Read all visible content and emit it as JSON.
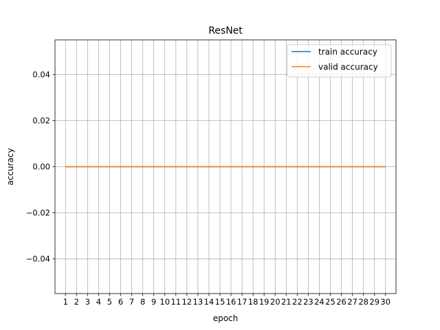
{
  "chart_data": {
    "type": "line",
    "title": "ResNet",
    "xlabel": "epoch",
    "ylabel": "accuracy",
    "x": [
      1,
      2,
      3,
      4,
      5,
      6,
      7,
      8,
      9,
      10,
      11,
      12,
      13,
      14,
      15,
      16,
      17,
      18,
      19,
      20,
      21,
      22,
      23,
      24,
      25,
      26,
      27,
      28,
      29,
      30
    ],
    "x_ticks": [
      "1",
      "2",
      "3",
      "4",
      "5",
      "6",
      "7",
      "8",
      "9",
      "10",
      "11",
      "12",
      "13",
      "14",
      "15",
      "16",
      "17",
      "18",
      "19",
      "20",
      "21",
      "22",
      "23",
      "24",
      "25",
      "26",
      "27",
      "28",
      "29",
      "30"
    ],
    "xlim": [
      0.05,
      30.95
    ],
    "ylim": [
      -0.055,
      0.055
    ],
    "y_ticks": [
      -0.04,
      -0.02,
      0.0,
      0.02,
      0.04
    ],
    "y_tick_labels": [
      "−0.04",
      "−0.02",
      "0.00",
      "0.02",
      "0.04"
    ],
    "grid": true,
    "legend_position": "top-right",
    "series": [
      {
        "name": "train accuracy",
        "color": "#1f77b4",
        "values": [
          0,
          0,
          0,
          0,
          0,
          0,
          0,
          0,
          0,
          0,
          0,
          0,
          0,
          0,
          0,
          0,
          0,
          0,
          0,
          0,
          0,
          0,
          0,
          0,
          0,
          0,
          0,
          0,
          0,
          0
        ]
      },
      {
        "name": "valid accuracy",
        "color": "#ff7f0e",
        "values": [
          0,
          0,
          0,
          0,
          0,
          0,
          0,
          0,
          0,
          0,
          0,
          0,
          0,
          0,
          0,
          0,
          0,
          0,
          0,
          0,
          0,
          0,
          0,
          0,
          0,
          0,
          0,
          0,
          0,
          0
        ]
      }
    ]
  }
}
